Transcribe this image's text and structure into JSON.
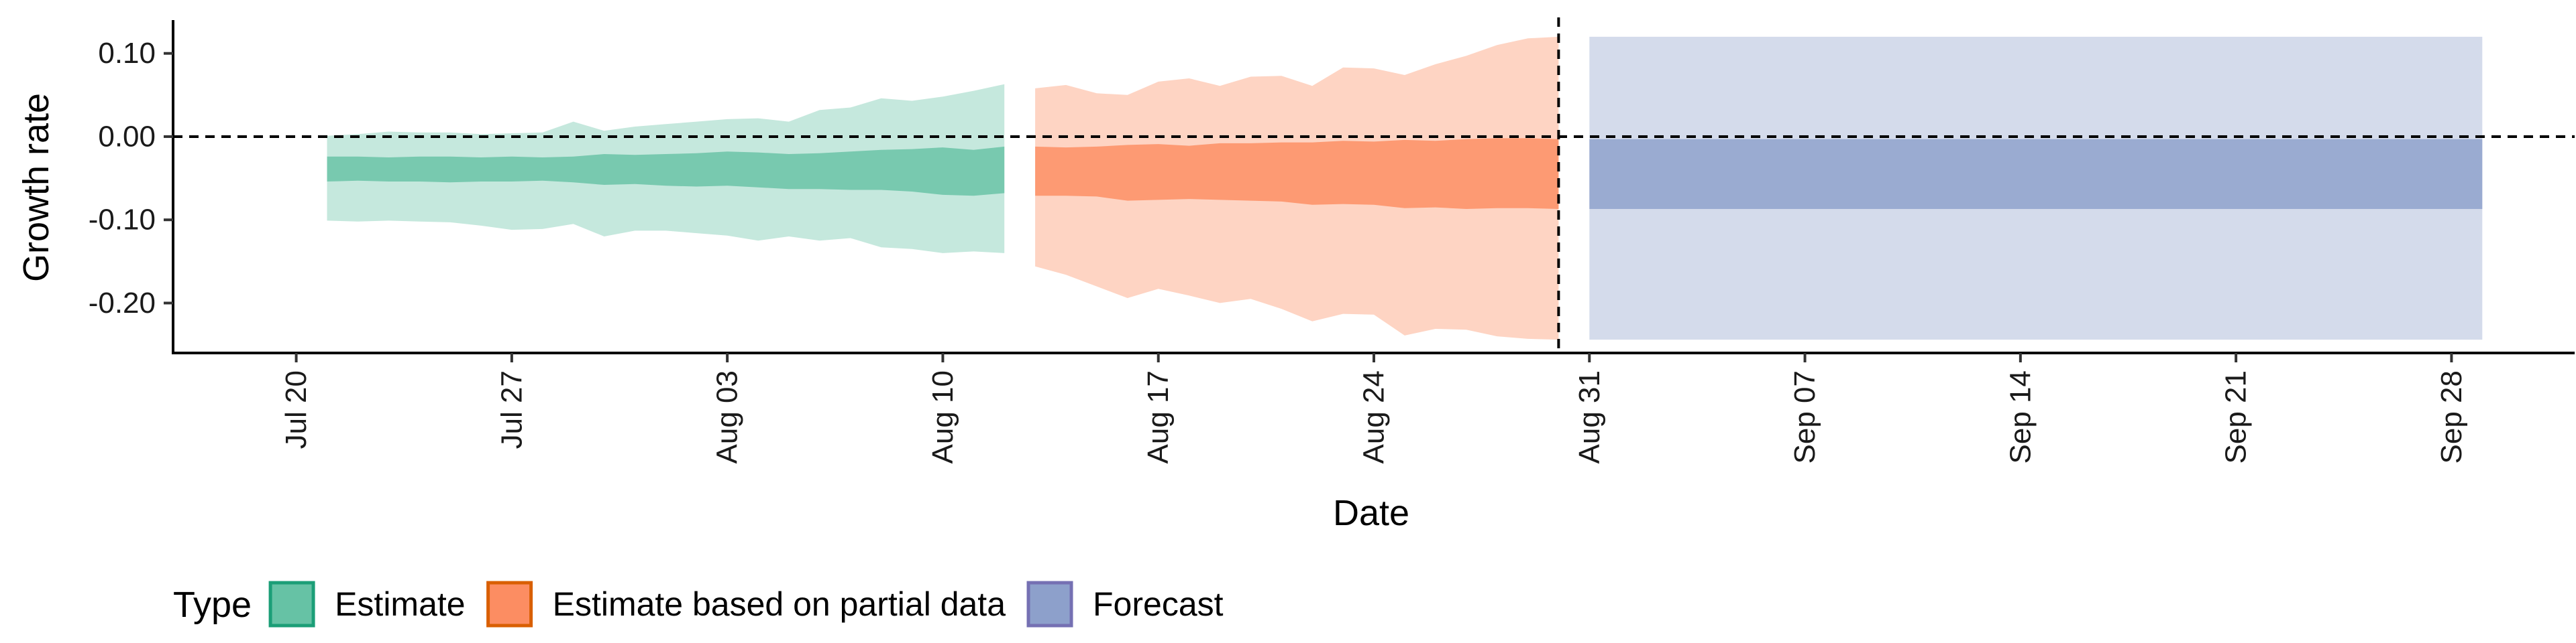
{
  "chart_data": {
    "type": "area",
    "title": "",
    "xlabel": "Date",
    "ylabel": "Growth rate",
    "x_axis": {
      "type": "date",
      "range": [
        "2020-07-16",
        "2020-10-02"
      ],
      "tick_dates": [
        "2020-07-20",
        "2020-07-27",
        "2020-08-03",
        "2020-08-10",
        "2020-08-17",
        "2020-08-24",
        "2020-08-31",
        "2020-09-07",
        "2020-09-14",
        "2020-09-21",
        "2020-09-28"
      ],
      "tick_labels": [
        "Jul 20",
        "Jul 27",
        "Aug 03",
        "Aug 10",
        "Aug 17",
        "Aug 24",
        "Aug 31",
        "Sep 07",
        "Sep 14",
        "Sep 21",
        "Sep 28"
      ],
      "label_rotation": -90
    },
    "y_axis": {
      "range": [
        -0.26,
        0.14
      ],
      "ticks": [
        0.1,
        0.0,
        -0.1,
        -0.2
      ],
      "tick_labels": [
        "0.10",
        "0.00",
        "-0.10",
        "-0.20"
      ]
    },
    "grid": false,
    "reference_lines": [
      {
        "orientation": "horizontal",
        "value": 0.0,
        "style": "dashed"
      },
      {
        "orientation": "vertical",
        "value": "2020-08-30",
        "style": "dashed"
      }
    ],
    "legend": {
      "title": "Type",
      "placement": "bottom-left",
      "entries": [
        {
          "label": "Estimate",
          "fill": "#66C2A5",
          "stroke": "#1B9E77"
        },
        {
          "label": "Estimate based on partial data",
          "fill": "#FC8D62",
          "stroke": "#D95F02"
        },
        {
          "label": "Forecast",
          "fill": "#8DA0CB",
          "stroke": "#7570B3"
        }
      ]
    },
    "series": [
      {
        "name": "Estimate",
        "color": "#1B9E77",
        "dates": [
          "2020-07-21",
          "2020-07-22",
          "2020-07-23",
          "2020-07-24",
          "2020-07-25",
          "2020-07-26",
          "2020-07-27",
          "2020-07-28",
          "2020-07-29",
          "2020-07-30",
          "2020-07-31",
          "2020-08-01",
          "2020-08-02",
          "2020-08-03",
          "2020-08-04",
          "2020-08-05",
          "2020-08-06",
          "2020-08-07",
          "2020-08-08",
          "2020-08-09",
          "2020-08-10",
          "2020-08-11",
          "2020-08-12"
        ],
        "outer_upper": [
          0.001,
          0.003,
          0.006,
          0.005,
          0.005,
          0.003,
          0.004,
          0.005,
          0.018,
          0.007,
          0.012,
          0.015,
          0.018,
          0.021,
          0.022,
          0.018,
          0.032,
          0.035,
          0.046,
          0.043,
          0.048,
          0.055,
          0.063
        ],
        "outer_lower": [
          -0.101,
          -0.102,
          -0.101,
          -0.102,
          -0.103,
          -0.107,
          -0.112,
          -0.111,
          -0.105,
          -0.12,
          -0.113,
          -0.113,
          -0.116,
          -0.119,
          -0.125,
          -0.12,
          -0.125,
          -0.122,
          -0.133,
          -0.135,
          -0.14,
          -0.138,
          -0.14
        ],
        "inner_upper": [
          -0.024,
          -0.024,
          -0.025,
          -0.024,
          -0.024,
          -0.025,
          -0.024,
          -0.025,
          -0.024,
          -0.021,
          -0.022,
          -0.021,
          -0.02,
          -0.018,
          -0.019,
          -0.021,
          -0.02,
          -0.018,
          -0.016,
          -0.015,
          -0.013,
          -0.016,
          -0.012
        ],
        "inner_lower": [
          -0.054,
          -0.053,
          -0.054,
          -0.054,
          -0.055,
          -0.054,
          -0.054,
          -0.053,
          -0.055,
          -0.058,
          -0.057,
          -0.059,
          -0.06,
          -0.059,
          -0.061,
          -0.063,
          -0.063,
          -0.064,
          -0.064,
          -0.066,
          -0.07,
          -0.071,
          -0.068
        ]
      },
      {
        "name": "Estimate based on partial data",
        "color": "#D95F02",
        "dates": [
          "2020-08-13",
          "2020-08-14",
          "2020-08-15",
          "2020-08-16",
          "2020-08-17",
          "2020-08-18",
          "2020-08-19",
          "2020-08-20",
          "2020-08-21",
          "2020-08-22",
          "2020-08-23",
          "2020-08-24",
          "2020-08-25",
          "2020-08-26",
          "2020-08-27",
          "2020-08-28",
          "2020-08-29",
          "2020-08-30"
        ],
        "outer_upper": [
          0.058,
          0.062,
          0.052,
          0.05,
          0.066,
          0.07,
          0.061,
          0.072,
          0.073,
          0.061,
          0.083,
          0.082,
          0.074,
          0.087,
          0.097,
          0.11,
          0.118,
          0.12
        ],
        "outer_lower": [
          -0.156,
          -0.166,
          -0.18,
          -0.194,
          -0.183,
          -0.191,
          -0.2,
          -0.195,
          -0.207,
          -0.222,
          -0.213,
          -0.214,
          -0.239,
          -0.231,
          -0.232,
          -0.24,
          -0.243,
          -0.244
        ],
        "inner_upper": [
          -0.012,
          -0.013,
          -0.012,
          -0.01,
          -0.009,
          -0.011,
          -0.008,
          -0.008,
          -0.007,
          -0.007,
          -0.005,
          -0.006,
          -0.004,
          -0.005,
          -0.003,
          -0.002,
          -0.002,
          -0.003
        ],
        "inner_lower": [
          -0.071,
          -0.071,
          -0.072,
          -0.077,
          -0.076,
          -0.075,
          -0.076,
          -0.077,
          -0.078,
          -0.082,
          -0.081,
          -0.082,
          -0.086,
          -0.085,
          -0.087,
          -0.086,
          -0.086,
          -0.087
        ]
      },
      {
        "name": "Forecast",
        "color": "#7570B3",
        "dates": [
          "2020-08-31",
          "2020-09-29"
        ],
        "outer_upper": [
          0.12,
          0.12
        ],
        "outer_lower": [
          -0.244,
          -0.244
        ],
        "inner_upper": [
          -0.003,
          -0.003
        ],
        "inner_lower": [
          -0.087,
          -0.087
        ]
      }
    ]
  }
}
